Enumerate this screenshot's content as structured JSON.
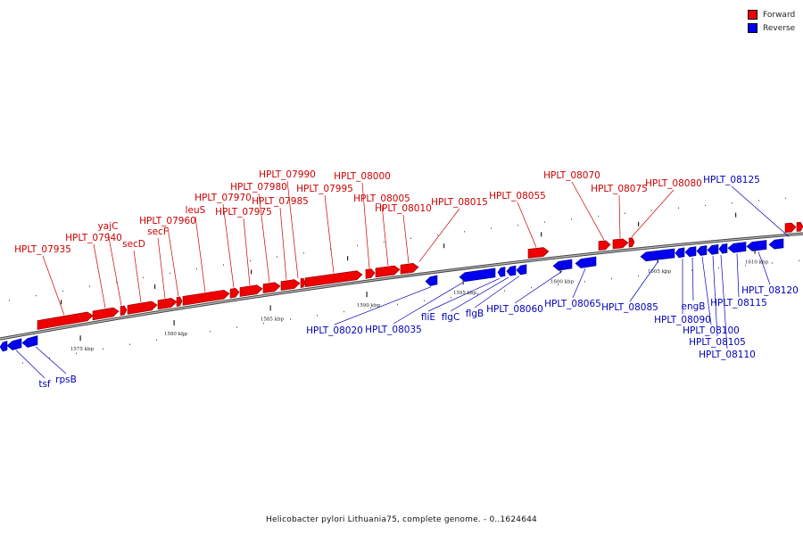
{
  "legend": {
    "forward_label": "Forward",
    "reverse_label": "Reverse",
    "forward_color": "#ee0000",
    "reverse_color": "#0000ee"
  },
  "caption": "Helicobacter pylori Lithuania75, complete genome. - 0..1624644",
  "ticks": [
    "1575 kbp",
    "1580 kbp",
    "1585 kbp",
    "1590 kbp",
    "1595 kbp",
    "1600 kbp",
    "1605 kbp",
    "1610 kbp"
  ],
  "forward_labels": [
    "HPLT_07935",
    "HPLT_07940",
    "yajC",
    "secD",
    "secF",
    "HPLT_07960",
    "leuS",
    "HPLT_07970",
    "HPLT_07975",
    "HPLT_07980",
    "HPLT_07985",
    "HPLT_07990",
    "HPLT_07995",
    "HPLT_08000",
    "HPLT_08005",
    "HPLT_08010",
    "HPLT_08015",
    "HPLT_08055",
    "HPLT_08070",
    "HPLT_08075",
    "HPLT_08080"
  ],
  "reverse_labels": [
    "tsf",
    "rpsB",
    "HPLT_08020",
    "HPLT_08035",
    "fliE",
    "flgC",
    "flgB",
    "HPLT_08060",
    "HPLT_08065",
    "HPLT_08085",
    "engB",
    "HPLT_08090",
    "HPLT_08100",
    "HPLT_08105",
    "HPLT_08110",
    "HPLT_08115",
    "HPLT_08120",
    "HPLT_08125"
  ]
}
